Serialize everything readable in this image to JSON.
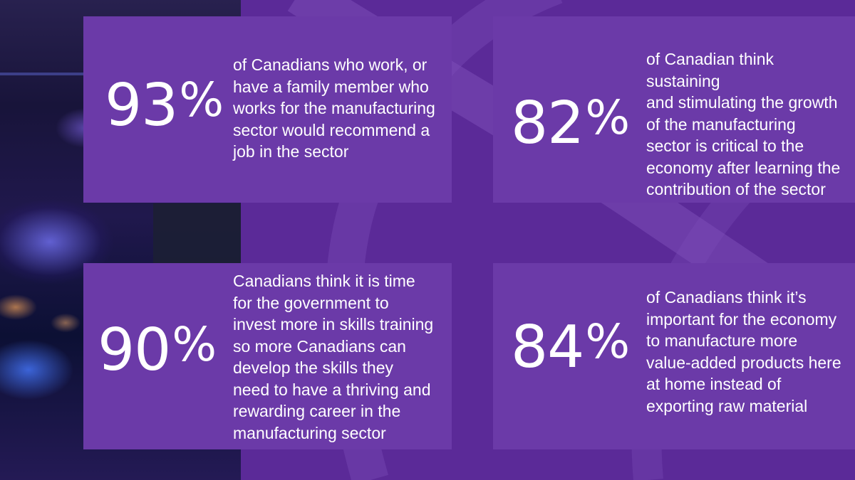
{
  "background": {
    "accent": "#5b2a98",
    "card": "#6b3aa8",
    "photo": "welding-sparks-photo"
  },
  "stats": [
    {
      "value": "93",
      "unit": "%",
      "text": "of Canadians who work, or\nhave a family member who\nworks for the manufacturing\nsector would recommend a\njob in the sector"
    },
    {
      "value": "82",
      "unit": "%",
      "text": "of Canadian think sustaining\nand stimulating the growth\nof the manufacturing\nsector is critical to the\neconomy after learning the\ncontribution of the sector"
    },
    {
      "value": "90",
      "unit": "%",
      "text": "Canadians think it is time\nfor the government to\ninvest more in skills training\nso more Canadians can\ndevelop the skills they\nneed to have a thriving and\nrewarding career in the\nmanufacturing sector"
    },
    {
      "value": "84",
      "unit": "%",
      "text": "of  Canadians think it’s\nimportant for the economy\nto manufacture more\nvalue-added products here\nat home instead of\nexporting raw material"
    }
  ]
}
